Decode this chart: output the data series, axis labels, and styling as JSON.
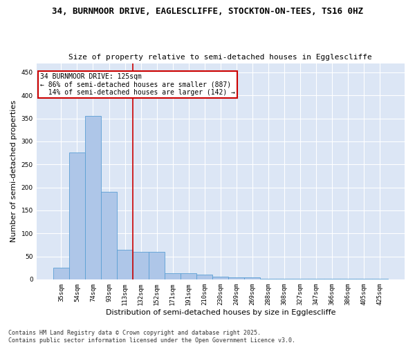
{
  "title_line1": "34, BURNMOOR DRIVE, EAGLESCLIFFE, STOCKTON-ON-TEES, TS16 0HZ",
  "title_line2": "Size of property relative to semi-detached houses in Egglescliffe",
  "xlabel": "Distribution of semi-detached houses by size in Egglescliffe",
  "ylabel": "Number of semi-detached properties",
  "categories": [
    "35sqm",
    "54sqm",
    "74sqm",
    "93sqm",
    "113sqm",
    "132sqm",
    "152sqm",
    "171sqm",
    "191sqm",
    "210sqm",
    "230sqm",
    "249sqm",
    "269sqm",
    "288sqm",
    "308sqm",
    "327sqm",
    "347sqm",
    "366sqm",
    "386sqm",
    "405sqm",
    "425sqm"
  ],
  "values": [
    25,
    276,
    356,
    190,
    65,
    60,
    60,
    13,
    13,
    10,
    6,
    5,
    5,
    2,
    2,
    1,
    1,
    1,
    1,
    1,
    2
  ],
  "bar_color": "#aec6e8",
  "bar_edge_color": "#5a9fd4",
  "vline_x": 4.5,
  "vline_color": "#cc0000",
  "annotation_text": "34 BURNMOOR DRIVE: 125sqm\n← 86% of semi-detached houses are smaller (887)\n  14% of semi-detached houses are larger (142) →",
  "annotation_box_color": "#cc0000",
  "ylim": [
    0,
    470
  ],
  "yticks": [
    0,
    50,
    100,
    150,
    200,
    250,
    300,
    350,
    400,
    450
  ],
  "background_color": "#dce6f5",
  "grid_color": "#ffffff",
  "fig_background": "#ffffff",
  "footer_line1": "Contains HM Land Registry data © Crown copyright and database right 2025.",
  "footer_line2": "Contains public sector information licensed under the Open Government Licence v3.0.",
  "title_fontsize": 9,
  "subtitle_fontsize": 8,
  "axis_label_fontsize": 8,
  "tick_fontsize": 6.5,
  "annotation_fontsize": 7,
  "footer_fontsize": 6
}
